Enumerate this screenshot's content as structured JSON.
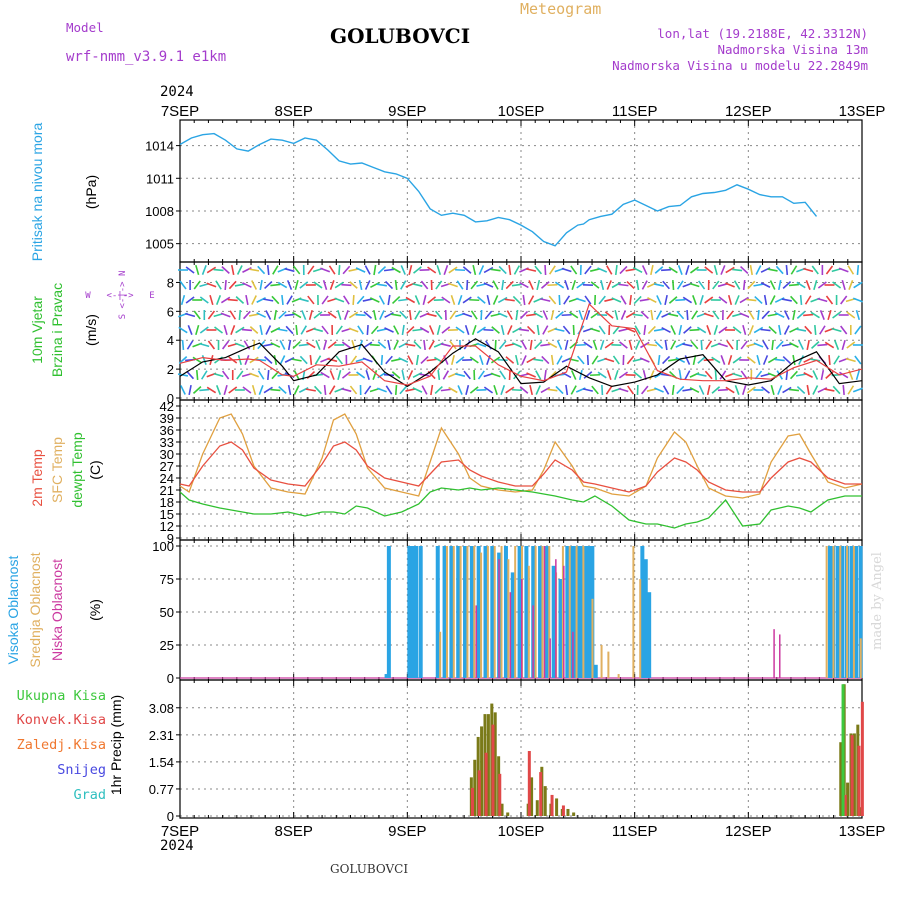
{
  "header": {
    "model_label": "Model",
    "model_name": "wrf-nmm_v3.9.1 e1km",
    "station": "GOLUBOVCI",
    "meteogram": "Meteogram",
    "coords": "lon,lat (19.2188E, 42.3312N)",
    "elevation": "Nadmorska Visina 13m",
    "model_elevation": "Nadmorska Visina u modelu 22.2849m",
    "year": "2024",
    "footer_station": "GOLUBOVCI",
    "watermark": "made by Angel"
  },
  "colors": {
    "pressure": "#2aa4e4",
    "t2m": "#e85040",
    "sfc": "#e0a040",
    "dew": "#30c030",
    "high_cloud": "#2aa4e4",
    "mid_cloud": "#e0b060",
    "low_cloud": "#cc3aa0",
    "total_precip": "#3ec83e",
    "conv_precip": "#e04848",
    "frozen_precip": "#f07830",
    "snow": "#4848e0",
    "hail": "#30c0c0",
    "wind_speed": "#000000",
    "gust": "#e84040",
    "olive_bar": "#7a7a18",
    "purple": "#a43ccc"
  },
  "chart_data": [
    {
      "type": "line",
      "panel": "pressure",
      "ylabel_main": "Pritisak na nivou mora",
      "ylabel_unit": "(hPa)",
      "ylim": [
        1003.5,
        1015.8
      ],
      "yticks": [
        1005,
        1008,
        1011,
        1014
      ],
      "xlabel_days": [
        "7SEP",
        "8SEP",
        "9SEP",
        "10SEP",
        "11SEP",
        "12SEP",
        "13SEP"
      ],
      "x_days": [
        0,
        0.1,
        0.2,
        0.3,
        0.4,
        0.5,
        0.6,
        0.7,
        0.8,
        0.9,
        1.0,
        1.1,
        1.2,
        1.3,
        1.4,
        1.5,
        1.6,
        1.7,
        1.8,
        1.9,
        2.0,
        2.1,
        2.2,
        2.3,
        2.4,
        2.5,
        2.6,
        2.7,
        2.8,
        2.9,
        3.0,
        3.1,
        3.2,
        3.3,
        3.4,
        3.5,
        3.55,
        3.6,
        3.7,
        3.8,
        3.9,
        4.0,
        4.1,
        4.2,
        4.3,
        4.4,
        4.5,
        4.6,
        4.7,
        4.8,
        4.9,
        5.0,
        5.1,
        5.2,
        5.3,
        5.4,
        5.5,
        5.6,
        5.7,
        5.8,
        5.9,
        6.0
      ],
      "series": [
        {
          "values": [
            1014.1,
            1014.7,
            1015.0,
            1015.1,
            1014.5,
            1013.7,
            1013.5,
            1014.1,
            1014.6,
            1014.5,
            1014.2,
            1014.7,
            1014.5,
            1013.6,
            1012.6,
            1012.3,
            1012.4,
            1012.0,
            1011.6,
            1011.4,
            1011.0,
            1009.8,
            1008.2,
            1007.6,
            1007.8,
            1007.6,
            1007.0,
            1007.1,
            1007.4,
            1007.2,
            1006.7,
            1006.1,
            1005.2,
            1004.8,
            1006.0,
            1006.7,
            1006.8,
            1007.2,
            1007.5,
            1007.7,
            1008.6,
            1009.0,
            1008.5,
            1008.0,
            1008.4,
            1008.5,
            1009.3,
            1009.6,
            1009.7,
            1009.9,
            1010.4,
            1010.0,
            1009.5,
            1009.3,
            1009.3,
            1008.7,
            1008.8,
            1007.5
          ],
          "color_key": "pressure"
        }
      ]
    },
    {
      "type": "line",
      "panel": "wind",
      "ylabel_main": "10m Vjetar",
      "ylabel_sub": "Brzina i Pravac",
      "ylabel_unit": "(m/s)",
      "compass": {
        "north": "N",
        "south": "S",
        "west": "W",
        "east": "E",
        "glyph": "<-|->"
      },
      "ylim": [
        0,
        9
      ],
      "yticks": [
        0,
        2,
        4,
        6,
        8
      ],
      "x_days": [
        0,
        0.2,
        0.4,
        0.6,
        0.7,
        0.9,
        1.0,
        1.2,
        1.4,
        1.6,
        1.8,
        2.0,
        2.2,
        2.4,
        2.6,
        2.8,
        3.0,
        3.2,
        3.4,
        3.6,
        3.8,
        4.0,
        4.2,
        4.4,
        4.6,
        4.8,
        5.0,
        5.2,
        5.4,
        5.6,
        5.8,
        6.0
      ],
      "series": [
        {
          "name": "speed",
          "values": [
            1.5,
            2.5,
            2.8,
            3.5,
            3.8,
            2.2,
            1.2,
            1.6,
            3.2,
            3.7,
            1.8,
            0.8,
            1.8,
            3.1,
            4.1,
            3.2,
            1.0,
            1.1,
            2.2,
            1.4,
            0.8,
            1.1,
            1.6,
            2.7,
            3.0,
            1.2,
            0.9,
            1.2,
            2.5,
            3.2,
            1.0,
            1.2
          ],
          "color_key": "wind_speed"
        },
        {
          "name": "gust",
          "values": [
            2.4,
            2.8,
            2.6,
            2.7,
            2.6,
            1.6,
            1.5,
            2.3,
            2.2,
            2.5,
            1.2,
            0.9,
            1.5,
            3.6,
            3.6,
            2.3,
            1.5,
            1.2,
            1.8,
            6.5,
            5.0,
            4.8,
            1.9,
            1.3,
            1.2,
            1.2,
            1.4,
            1.3,
            2.1,
            2.6,
            1.6,
            2.0
          ],
          "color_key": "gust"
        }
      ]
    },
    {
      "type": "line",
      "panel": "temperature",
      "ylabel_lines": [
        "2m Temp",
        "SFC Temp",
        "dewpt Temp"
      ],
      "ylabel_unit": "(C)",
      "ylim": [
        9,
        42
      ],
      "yticks": [
        9,
        12,
        15,
        18,
        21,
        24,
        27,
        30,
        33,
        36,
        39,
        42
      ],
      "x_days": [
        0,
        0.08,
        0.2,
        0.35,
        0.45,
        0.55,
        0.65,
        0.8,
        0.95,
        1.1,
        1.25,
        1.35,
        1.45,
        1.55,
        1.65,
        1.8,
        1.95,
        2.1,
        2.2,
        2.3,
        2.45,
        2.55,
        2.65,
        2.8,
        2.95,
        3.1,
        3.2,
        3.3,
        3.45,
        3.55,
        3.65,
        3.8,
        3.95,
        4.1,
        4.2,
        4.35,
        4.45,
        4.55,
        4.65,
        4.8,
        4.95,
        5.1,
        5.2,
        5.35,
        5.45,
        5.55,
        5.7,
        5.85,
        6.0
      ],
      "series": [
        {
          "name": "2m",
          "values": [
            22.5,
            22.0,
            27,
            32,
            33,
            31,
            26.5,
            23.5,
            22.5,
            22,
            27.5,
            32,
            33,
            31,
            27,
            24,
            23,
            22,
            25,
            28,
            28.5,
            26,
            24.5,
            23,
            22,
            22,
            25,
            28.5,
            26,
            23,
            22.5,
            21.5,
            20.5,
            22,
            25.5,
            29,
            28,
            26,
            23,
            21,
            20.5,
            20.5,
            24,
            28,
            29,
            28,
            24,
            22.5,
            22.5
          ],
          "color_key": "t2m"
        },
        {
          "name": "sfc",
          "values": [
            22.0,
            20.5,
            30,
            39,
            40,
            35,
            27,
            21.5,
            20.5,
            20,
            29,
            38.5,
            40,
            35,
            26.5,
            21.5,
            20.5,
            19.5,
            28,
            36.5,
            30,
            24,
            22,
            21,
            20.5,
            21,
            26,
            33,
            27,
            22,
            21.5,
            20,
            19.5,
            22,
            29,
            35.5,
            33,
            27,
            21.5,
            19.5,
            19,
            20,
            28,
            34.5,
            35,
            30,
            23,
            21.5,
            22.5
          ],
          "color_key": "sfc"
        },
        {
          "name": "dew",
          "values": [
            20.5,
            18.5,
            17.5,
            16.5,
            16.0,
            15.5,
            15.0,
            15.0,
            15.5,
            14.5,
            15.5,
            15.5,
            15.0,
            17.0,
            16.5,
            14.5,
            15.5,
            17.5,
            20.5,
            21.5,
            21.0,
            21.5,
            21.0,
            21.5,
            21.0,
            20.5,
            20.0,
            19.5,
            18.5,
            18.0,
            19.5,
            17.0,
            13.5,
            12.5,
            12.5,
            11.5,
            12.5,
            13.0,
            14.0,
            18.5,
            12.0,
            12.5,
            16.0,
            17.0,
            16.5,
            15.5,
            18.5,
            19.5,
            19.5
          ],
          "color_key": "dew"
        }
      ]
    },
    {
      "type": "bar",
      "panel": "cloud",
      "ylabel_lines": [
        "Visoka Oblacnost",
        "Srednja Oblacnost",
        "Niska Oblacnost"
      ],
      "ylabel_unit": "(%)",
      "ylim": [
        0,
        100
      ],
      "yticks": [
        0,
        25,
        50,
        75,
        100
      ],
      "series": [
        {
          "name": "high",
          "color_key": "high_cloud",
          "x_days": [
            1.8,
            1.82,
            2.0,
            2.03,
            2.06,
            2.1,
            2.25,
            2.31,
            2.37,
            2.43,
            2.49,
            2.55,
            2.61,
            2.67,
            2.73,
            2.79,
            2.85,
            2.91,
            2.97,
            3.03,
            3.09,
            3.15,
            3.21,
            3.27,
            3.33,
            3.39,
            3.43,
            3.46,
            3.49,
            3.52,
            3.55,
            3.58,
            3.61,
            3.64,
            4.05,
            4.08,
            4.11,
            5.7,
            5.73,
            5.77,
            5.81,
            5.85,
            5.89,
            5.93,
            5.97
          ],
          "values": [
            3,
            100,
            100,
            100,
            100,
            100,
            100,
            100,
            100,
            100,
            100,
            100,
            100,
            100,
            100,
            95,
            100,
            80,
            100,
            100,
            100,
            100,
            100,
            85,
            75,
            100,
            100,
            100,
            100,
            100,
            100,
            100,
            100,
            10,
            100,
            90,
            65,
            100,
            100,
            100,
            100,
            100,
            100,
            100,
            100
          ]
        },
        {
          "name": "mid",
          "color_key": "mid_cloud",
          "x_days": [
            2.28,
            2.34,
            2.4,
            2.46,
            2.52,
            2.58,
            2.64,
            2.7,
            2.76,
            2.82,
            2.88,
            2.94,
            3.0,
            3.06,
            3.12,
            3.18,
            3.24,
            3.3,
            3.36,
            3.42,
            3.48,
            3.54,
            3.62,
            3.7,
            3.76,
            3.85,
            3.98,
            4.04,
            5.68,
            5.74,
            5.8,
            5.86,
            5.92,
            5.98
          ],
          "values": [
            35,
            100,
            100,
            100,
            100,
            100,
            95,
            100,
            100,
            100,
            90,
            100,
            100,
            85,
            100,
            100,
            100,
            80,
            100,
            100,
            100,
            100,
            60,
            25,
            20,
            3,
            100,
            75,
            100,
            100,
            100,
            100,
            100,
            30
          ]
        },
        {
          "name": "low",
          "color_key": "low_cloud",
          "x_days": [
            2.6,
            2.8,
            2.9,
            3.0,
            3.1,
            3.2,
            3.25,
            3.3,
            3.37,
            3.45,
            5.22,
            5.27
          ],
          "values": [
            55,
            90,
            65,
            75,
            55,
            100,
            30,
            90,
            85,
            35,
            37,
            33
          ]
        }
      ]
    },
    {
      "type": "bar",
      "panel": "precip",
      "ylabel_main": "1hr Precip (mm)",
      "legend": [
        "Ukupna Kisa",
        "Konvek.Kisa",
        "Zaledj.Kisa",
        "Snijeg",
        "Grad"
      ],
      "ylim": [
        0,
        3.7
      ],
      "yticks": [
        0,
        0.77,
        1.54,
        2.31,
        3.08
      ],
      "series": [
        {
          "name": "Ukupna Kisa",
          "color_key": "olive_bar",
          "x_days": [
            2.55,
            2.58,
            2.61,
            2.64,
            2.67,
            2.7,
            2.73,
            2.76,
            2.79,
            2.82,
            2.87,
            3.05,
            3.08,
            3.13,
            3.17,
            3.2,
            3.25,
            3.3,
            3.35,
            3.4,
            3.45,
            5.8,
            5.83,
            5.86,
            5.89,
            5.92,
            5.95,
            5.98
          ],
          "values": [
            1.1,
            1.6,
            2.25,
            2.55,
            2.9,
            2.9,
            3.2,
            2.95,
            1.7,
            0.35,
            0.1,
            0.35,
            1.1,
            0.45,
            1.4,
            0.85,
            0.35,
            0.5,
            0.2,
            0.2,
            0.1,
            2.1,
            3.75,
            0.95,
            2.35,
            2.35,
            2.6,
            0.25
          ]
        },
        {
          "name": "Konvek.Kisa",
          "color_key": "conv_precip",
          "x_days": [
            2.56,
            2.62,
            2.68,
            2.74,
            2.8,
            3.06,
            3.16,
            3.26,
            3.36,
            5.84,
            5.9,
            5.96,
            5.99
          ],
          "values": [
            0.8,
            1.3,
            1.8,
            2.6,
            1.2,
            1.85,
            1.25,
            0.6,
            0.3,
            0.6,
            2.3,
            2.0,
            3.25
          ]
        },
        {
          "name": "Green total",
          "color_key": "total_precip",
          "x_days": [
            5.82
          ],
          "values": [
            3.75
          ]
        }
      ]
    }
  ]
}
